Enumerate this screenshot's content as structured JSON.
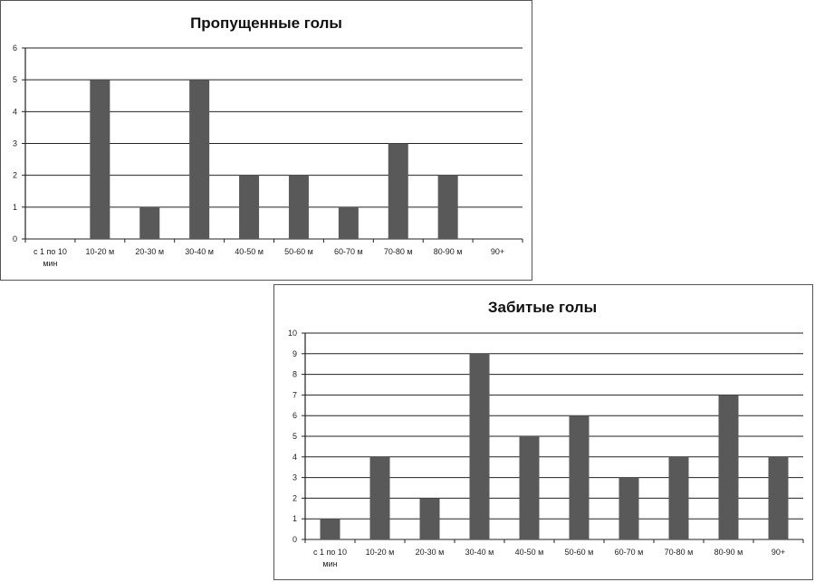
{
  "chart_data": [
    {
      "type": "bar",
      "title": "Пропущенные голы",
      "categories": [
        "с 1 по 10 мин",
        "10-20 м",
        "20-30 м",
        "30-40 м",
        "40-50 м",
        "50-60 м",
        "60-70 м",
        "70-80 м",
        "80-90 м",
        "90+"
      ],
      "values": [
        0,
        5,
        1,
        5,
        2,
        2,
        1,
        3,
        2,
        0
      ],
      "ylim": [
        0,
        6
      ],
      "yticks": [
        0,
        1,
        2,
        3,
        4,
        5,
        6
      ],
      "grid": true,
      "legend": "none",
      "bar_color": "#595959"
    },
    {
      "type": "bar",
      "title": "Забитые голы",
      "categories": [
        "с 1 по 10 мин",
        "10-20 м",
        "20-30 м",
        "30-40 м",
        "40-50 м",
        "50-60 м",
        "60-70 м",
        "70-80 м",
        "80-90 м",
        "90+"
      ],
      "values": [
        1,
        4,
        2,
        9,
        5,
        6,
        3,
        4,
        7,
        4
      ],
      "ylim": [
        0,
        10
      ],
      "yticks": [
        0,
        1,
        2,
        3,
        4,
        5,
        6,
        7,
        8,
        9,
        10
      ],
      "grid": true,
      "legend": "none",
      "bar_color": "#595959"
    }
  ]
}
